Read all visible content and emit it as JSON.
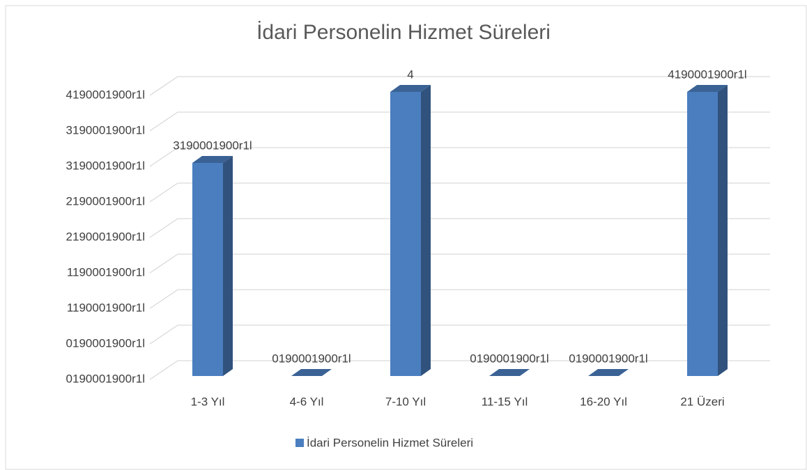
{
  "chart_data": {
    "type": "bar3d",
    "title": "İdari Personelin Hizmet Süreleri",
    "categories": [
      "1-3 Yıl",
      "4-6 Yıl",
      "7-10 Yıl",
      "11-15 Yıl",
      "16-20 Yıl",
      "21 Üzeri"
    ],
    "series": [
      {
        "name": "İdari Personelin Hizmet Süreleri",
        "color": "#4a7ebf",
        "values": [
          3,
          0,
          4,
          0,
          0,
          4
        ],
        "value_labels": [
          "3190001900r1l",
          "0190001900r1l",
          "4",
          "0190001900r1l",
          "0190001900r1l",
          "4190001900r1l"
        ]
      }
    ],
    "ylim": [
      0,
      4
    ],
    "yticks": [
      {
        "value": 0,
        "label": "0190001900r1l"
      },
      {
        "value": 0.5,
        "label": "0190001900r1l"
      },
      {
        "value": 1,
        "label": "1190001900r1l"
      },
      {
        "value": 1.5,
        "label": "1190001900r1l"
      },
      {
        "value": 2,
        "label": "2190001900r1l"
      },
      {
        "value": 2.5,
        "label": "2190001900r1l"
      },
      {
        "value": 3,
        "label": "3190001900r1l"
      },
      {
        "value": 3.5,
        "label": "3190001900r1l"
      },
      {
        "value": 4,
        "label": "4190001900r1l"
      }
    ],
    "grid": true,
    "legend": "bottom"
  }
}
